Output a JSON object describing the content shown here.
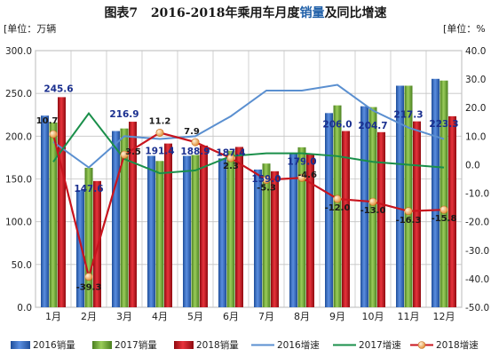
{
  "title": {
    "prefix": "图表7",
    "main_before": "2016-2018年乘用车月度",
    "main_highlight": "销量",
    "main_after": "及同比增速"
  },
  "chart_data": {
    "type": "bar",
    "categories": [
      "1月",
      "2月",
      "3月",
      "4月",
      "5月",
      "6月",
      "7月",
      "8月",
      "9月",
      "10月",
      "11月",
      "12月"
    ],
    "left_axis": {
      "unit_label": "[单位：万辆",
      "ylim": [
        0,
        300
      ],
      "ticks": [
        "0.0",
        "50.0",
        "100.0",
        "150.0",
        "200.0",
        "250.0",
        "300.0"
      ]
    },
    "right_axis": {
      "unit_label": "[单位：%",
      "ylim": [
        -50,
        40
      ],
      "ticks": [
        "-50.0",
        "-40.0",
        "-30.0",
        "-20.0",
        "-10.0",
        "0.0",
        "10.0",
        "20.0",
        "30.0",
        "40.0"
      ]
    },
    "grid": true,
    "legend_position": "bottom",
    "bar_series": [
      {
        "name": "2016销量",
        "color": "#3a6fc4",
        "values": [
          224,
          137,
          206,
          177,
          177,
          174,
          161,
          180,
          227,
          235,
          259,
          267
        ]
      },
      {
        "name": "2017销量",
        "color": "#6ea83a",
        "values": [
          216,
          163,
          209,
          171,
          178,
          183,
          168,
          187,
          236,
          234,
          259,
          265
        ]
      },
      {
        "name": "2018销量",
        "color": "#c8141e",
        "values": [
          245.6,
          147.6,
          216.9,
          191.4,
          188.9,
          187.4,
          159.0,
          179.0,
          206.0,
          204.7,
          217.3,
          223.3
        ],
        "labels": [
          "245.6",
          "147.6",
          "216.9",
          "191.4",
          "188.9",
          "187.4",
          "159.0",
          "179.0",
          "206.0",
          "204.7",
          "217.3",
          "223.3"
        ]
      }
    ],
    "line_series": [
      {
        "name": "2016增速",
        "color": "#5a8fd0",
        "values": [
          8,
          -1,
          10,
          9,
          10,
          17,
          26,
          26,
          28,
          19,
          13,
          9
        ]
      },
      {
        "name": "2017增速",
        "color": "#1a8f4a",
        "values": [
          1,
          18,
          2,
          -3,
          -2,
          3,
          4,
          4,
          3,
          1,
          0,
          -1
        ]
      },
      {
        "name": "2018增速",
        "color": "#c8141e",
        "marker_color": "#f0a050",
        "values": [
          10.7,
          -39.3,
          3.5,
          11.2,
          7.9,
          2.3,
          -5.3,
          -4.6,
          -12.0,
          -13.0,
          -16.3,
          -15.8
        ],
        "labels": [
          "10.7",
          "-39.3",
          "3.5",
          "11.2",
          "7.9",
          "2.3",
          "-5.3",
          "-4.6",
          "-12.0",
          "-13.0",
          "-16.3",
          "-15.8"
        ]
      }
    ]
  }
}
